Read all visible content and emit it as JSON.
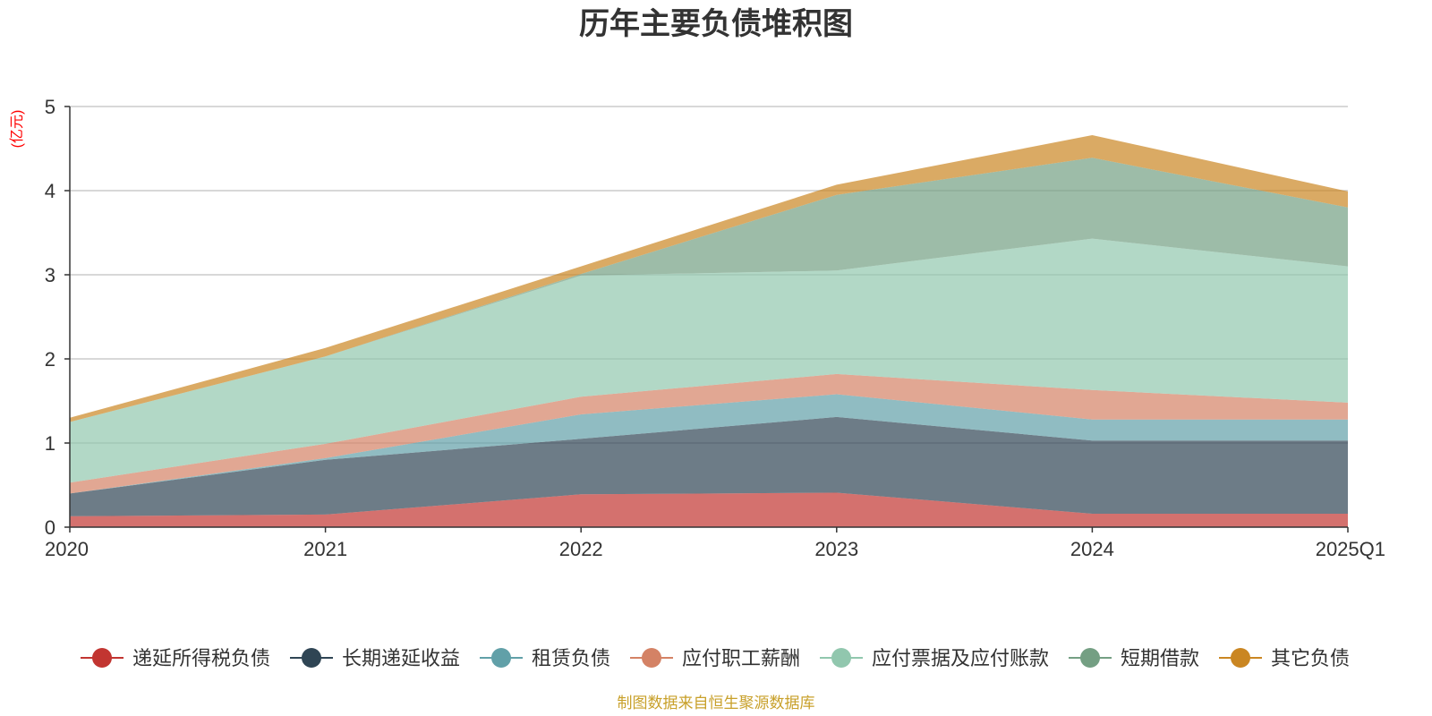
{
  "chart_data": {
    "type": "area",
    "stacked": true,
    "title": "历年主要负债堆积图",
    "unit_label": "(亿元)",
    "categories": [
      "2020",
      "2021",
      "2022",
      "2023",
      "2024",
      "2025Q1"
    ],
    "ylim": [
      0,
      5
    ],
    "yticks": [
      "0",
      "1",
      "2",
      "3",
      "4",
      "5"
    ],
    "grid": true,
    "legend_position": "bottom",
    "series": [
      {
        "name": "递延所得税负债",
        "color": "#c23531",
        "values": [
          0.13,
          0.15,
          0.39,
          0.41,
          0.16,
          0.16
        ]
      },
      {
        "name": "长期递延收益",
        "color": "#2f4554",
        "values": [
          0.27,
          0.65,
          0.66,
          0.9,
          0.87,
          0.87
        ]
      },
      {
        "name": "租赁负债",
        "color": "#61a0a8",
        "values": [
          0.0,
          0.02,
          0.29,
          0.27,
          0.25,
          0.25
        ]
      },
      {
        "name": "应付职工薪酬",
        "color": "#d48265",
        "values": [
          0.13,
          0.17,
          0.21,
          0.24,
          0.35,
          0.2
        ]
      },
      {
        "name": "应付票据及应付账款",
        "color": "#91c7ae",
        "values": [
          0.72,
          1.04,
          1.44,
          1.23,
          1.8,
          1.62
        ]
      },
      {
        "name": "短期借款",
        "color": "#749f83",
        "values": [
          0.0,
          0.0,
          0.02,
          0.9,
          0.96,
          0.7
        ]
      },
      {
        "name": "其它负债",
        "color": "#ca8622",
        "values": [
          0.05,
          0.1,
          0.09,
          0.12,
          0.27,
          0.19
        ]
      }
    ],
    "source_note": "制图数据来自恒生聚源数据库"
  },
  "colors": {
    "axis": "#333333",
    "grid": "#cccccc",
    "unit": "#ff0000",
    "source": "#c8a02a"
  }
}
